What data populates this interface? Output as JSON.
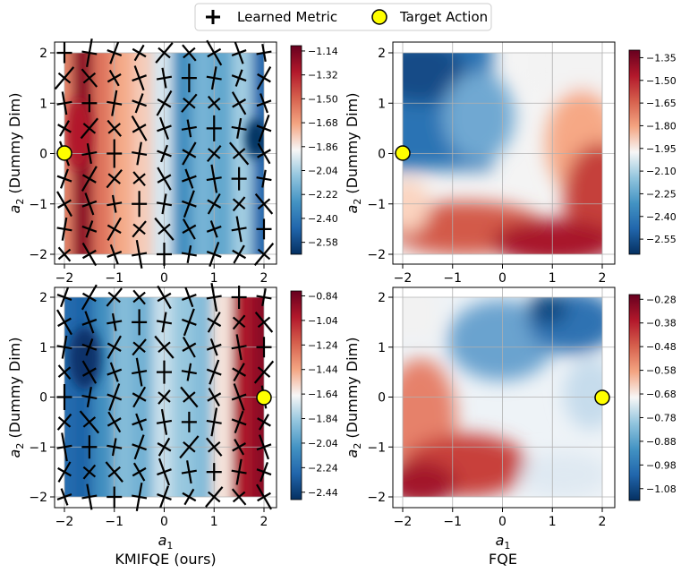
{
  "legend": {
    "items": [
      {
        "label": "Learned Metric",
        "marker": "plus"
      },
      {
        "label": "Target Action",
        "marker": "yellow-circle"
      }
    ],
    "placement": "top-center"
  },
  "colors": {
    "target_fill": "#FFFF00",
    "colormap": "RdBu_r",
    "marker": "#000000"
  },
  "chart_data": [
    {
      "id": "top-left",
      "type": "heatmap",
      "xlabel": "",
      "ylabel": "a2 (Dummy Dim)",
      "xticks": [
        -2,
        -1,
        0,
        1,
        2
      ],
      "yticks": [
        -2,
        -1,
        0,
        1,
        2
      ],
      "xlim": [
        -2.2,
        2.2
      ],
      "ylim": [
        -2.2,
        2.2
      ],
      "grid": true,
      "target": [
        -2,
        0
      ],
      "has_metric_markers": true,
      "colorbar": {
        "ticks": [
          "-1.14",
          "-1.32",
          "-1.50",
          "-1.68",
          "-1.86",
          "-2.04",
          "-2.22",
          "-2.40",
          "-2.58"
        ],
        "min": -2.67,
        "max": -1.1
      },
      "field": {
        "centers": [
          -2,
          -1.6,
          -1.2,
          -0.8,
          -0.4,
          0,
          0.4,
          0.8,
          1.2,
          1.6,
          2
        ],
        "values": [
          -1.6,
          -1.2,
          -1.55,
          -1.7,
          -1.78,
          -1.95,
          -2.3,
          -2.15,
          -2.2,
          -2.05,
          -2.45
        ]
      }
    },
    {
      "id": "top-right",
      "type": "heatmap",
      "xlabel": "",
      "ylabel": "a2 (Dummy Dim)",
      "xticks": [
        -2,
        -1,
        0,
        1,
        2
      ],
      "yticks": [
        -2,
        -1,
        0,
        1,
        2
      ],
      "xlim": [
        -2.2,
        2.2
      ],
      "ylim": [
        -2.2,
        2.2
      ],
      "grid": true,
      "target": [
        -2,
        0
      ],
      "has_metric_markers": false,
      "colorbar": {
        "ticks": [
          "-1.35",
          "-1.50",
          "-1.65",
          "-1.80",
          "-1.95",
          "-2.10",
          "-2.25",
          "-2.40",
          "-2.55"
        ],
        "min": -2.65,
        "max": -1.3
      }
    },
    {
      "id": "bottom-left",
      "type": "heatmap",
      "xlabel": "a1",
      "ylabel": "a2 (Dummy Dim)",
      "title_below": "KMIFQE (ours)",
      "xticks": [
        -2,
        -1,
        0,
        1,
        2
      ],
      "yticks": [
        -2,
        -1,
        0,
        1,
        2
      ],
      "xlim": [
        -2.2,
        2.2
      ],
      "ylim": [
        -2.2,
        2.2
      ],
      "grid": true,
      "target": [
        2,
        0
      ],
      "has_metric_markers": true,
      "colorbar": {
        "ticks": [
          "-0.84",
          "-1.04",
          "-1.24",
          "-1.44",
          "-1.64",
          "-1.84",
          "-2.04",
          "-2.24",
          "-2.44"
        ],
        "min": -2.5,
        "max": -0.8
      },
      "field": {
        "centers": [
          -2,
          -1.6,
          -1.2,
          -0.8,
          -0.4,
          0,
          0.4,
          0.8,
          1.2,
          1.6,
          2
        ],
        "values": [
          -2.25,
          -2.3,
          -2.1,
          -1.9,
          -1.95,
          -1.75,
          -1.85,
          -1.9,
          -1.6,
          -1.0,
          -0.9
        ]
      }
    },
    {
      "id": "bottom-right",
      "type": "heatmap",
      "xlabel": "a1",
      "ylabel": "a2 (Dummy Dim)",
      "title_below": "FQE",
      "xticks": [
        -2,
        -1,
        0,
        1,
        2
      ],
      "yticks": [
        -2,
        -1,
        0,
        1,
        2
      ],
      "xlim": [
        -2.2,
        2.2
      ],
      "ylim": [
        -2.2,
        2.2
      ],
      "grid": true,
      "target": [
        2,
        0
      ],
      "has_metric_markers": false,
      "colorbar": {
        "ticks": [
          "-0.28",
          "-0.38",
          "-0.48",
          "-0.58",
          "-0.68",
          "-0.78",
          "-0.88",
          "-0.98",
          "-1.08"
        ],
        "min": -1.13,
        "max": -0.26
      }
    }
  ]
}
